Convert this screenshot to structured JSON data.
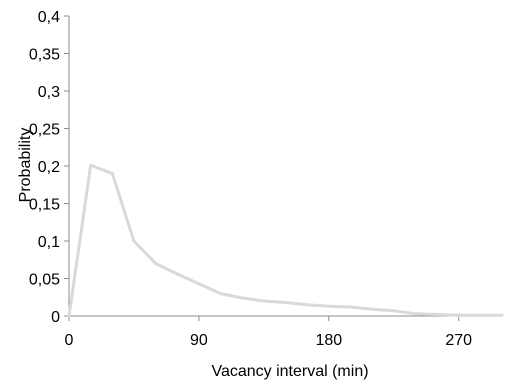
{
  "chart_data": {
    "type": "line",
    "title": "",
    "xlabel": "Vacancy interval (min)",
    "ylabel": "Probability",
    "xlim": [
      0,
      300
    ],
    "ylim": [
      0,
      0.4
    ],
    "x_ticks": [
      0,
      90,
      180,
      270
    ],
    "x_tick_labels": [
      "0",
      "90",
      "180",
      "270"
    ],
    "y_ticks": [
      0,
      0.05,
      0.1,
      0.15,
      0.2,
      0.25,
      0.3,
      0.35,
      0.4
    ],
    "y_tick_labels": [
      "0",
      "0,05",
      "0,1",
      "0,15",
      "0,2",
      "0,25",
      "0,3",
      "0,35",
      "0,4"
    ],
    "grid": false,
    "legend": "none",
    "series": [
      {
        "color": "#d9d9d9",
        "x": [
          0,
          15,
          30,
          45,
          60,
          75,
          90,
          105,
          120,
          135,
          150,
          165,
          180,
          195,
          210,
          225,
          240,
          255,
          270,
          285,
          300
        ],
        "y": [
          0,
          0.201,
          0.19,
          0.1,
          0.07,
          0.056,
          0.043,
          0.03,
          0.024,
          0.02,
          0.018,
          0.015,
          0.013,
          0.012,
          0.009,
          0.007,
          0.003,
          0.002,
          0.001,
          0.001,
          0.001
        ]
      }
    ]
  }
}
